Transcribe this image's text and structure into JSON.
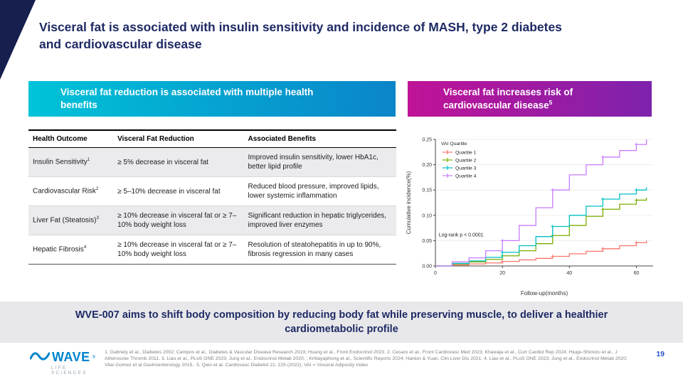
{
  "title": "Visceral fat is associated with insulin sensitivity and incidence of MASH, type 2 diabetes and cardiovascular disease",
  "banners": {
    "left": {
      "text": "Visceral fat reduction is associated with multiple health benefits"
    },
    "right": {
      "text": "Visceral fat increases risk of cardiovascular disease",
      "sup": "5"
    }
  },
  "table": {
    "headers": [
      "Health Outcome",
      "Visceral Fat Reduction",
      "Associated Benefits"
    ],
    "rows": [
      {
        "outcome": "Insulin Sensitivity",
        "sup": "1",
        "reduction": "≥ 5% decrease in visceral fat",
        "benefits": "Improved insulin sensitivity, lower HbA1c, better lipid profile"
      },
      {
        "outcome": "Cardiovascular Risk",
        "sup": "2",
        "reduction": "≥ 5–10% decrease in visceral fat",
        "benefits": "Reduced blood pressure, improved lipids, lower systemic inflammation"
      },
      {
        "outcome": "Liver Fat (Steatosis)",
        "sup": "3",
        "reduction": "≥ 10% decrease in visceral fat or ≥ 7–10% body weight loss",
        "benefits": "Significant reduction in hepatic triglycerides, improved liver enzymes"
      },
      {
        "outcome": "Hepatic Fibrosis",
        "sup": "4",
        "reduction": "≥ 10% decrease in visceral fat or ≥ 7–10% body weight loss",
        "benefits": "Resolution of steatohepatitis in up to 90%, fibrosis regression in many cases"
      }
    ]
  },
  "chart_data": {
    "type": "line",
    "subtype": "kaplan-meier-step",
    "title": "",
    "xlabel": "Follow-up(months)",
    "ylabel": "Cumulative incidence(%)",
    "xlim": [
      0,
      65
    ],
    "ylim": [
      0,
      0.25
    ],
    "xticks": [
      0,
      20,
      40,
      60
    ],
    "yticks": [
      0,
      0.05,
      0.1,
      0.15,
      0.2,
      0.25
    ],
    "legend_title": "VAI Quartile",
    "legend_position": "top-left-inside",
    "grid": "light-horizontal",
    "annotation": {
      "text": "Log-rank p < 0.0001",
      "x": 1,
      "y": 0.058
    },
    "series": [
      {
        "name": "Quartile 1",
        "color": "#F8766D",
        "x": [
          0,
          5,
          10,
          15,
          20,
          25,
          30,
          35,
          40,
          45,
          50,
          55,
          60,
          63
        ],
        "y": [
          0,
          0.002,
          0.004,
          0.006,
          0.009,
          0.012,
          0.015,
          0.019,
          0.024,
          0.029,
          0.034,
          0.04,
          0.046,
          0.05
        ]
      },
      {
        "name": "Quartile 2",
        "color": "#7CAE00",
        "x": [
          0,
          5,
          10,
          15,
          20,
          25,
          30,
          35,
          40,
          45,
          50,
          55,
          60,
          63
        ],
        "y": [
          0,
          0.004,
          0.008,
          0.013,
          0.02,
          0.03,
          0.044,
          0.06,
          0.08,
          0.098,
          0.112,
          0.122,
          0.13,
          0.135
        ]
      },
      {
        "name": "Quartile 3",
        "color": "#00BFC4",
        "x": [
          0,
          5,
          10,
          15,
          20,
          25,
          30,
          35,
          40,
          45,
          50,
          55,
          60,
          63
        ],
        "y": [
          0,
          0.005,
          0.01,
          0.017,
          0.027,
          0.04,
          0.058,
          0.078,
          0.1,
          0.118,
          0.132,
          0.142,
          0.15,
          0.155
        ]
      },
      {
        "name": "Quartile 4",
        "color": "#C77CFF",
        "x": [
          0,
          5,
          10,
          15,
          20,
          25,
          30,
          35,
          40,
          45,
          50,
          55,
          60,
          63
        ],
        "y": [
          0,
          0.008,
          0.016,
          0.03,
          0.05,
          0.08,
          0.115,
          0.15,
          0.18,
          0.2,
          0.215,
          0.228,
          0.24,
          0.25
        ]
      }
    ]
  },
  "bottom_banner": "WVE-007 aims to shift body composition by reducing body fat while preserving muscle, to deliver a healthier cardiometabolic profile",
  "footer": {
    "logo_name": "WAVE",
    "logo_reg": "®",
    "logo_tagline": "LIFE SCIENCES",
    "references": "1. Gabriely et al., Diabetes 2002; Campos et al., Diabetes & Vascular Disease Research 2019; Huang et al., Front Endocrinol 2023. 2. Cesaro et al., Front Cardiovasc Med 2023; Khawaja et al., Curr Cardiol Rep 2024; Hiuge-Shimizu et al., J Atheroscler Thromb 2011. 3. Liao et al., PLoS ONE 2023; Jung et al., Endocrinol Metab 2020; ; Krittayaphong et al., Scientific Reports 2024; Hanlon & Yuan, Clin Liver Dis 2021. 4. Liao et al., PLoS ONE 2023; Jung et al., Endocrinol Metab 2020; Vilar-Gomez et al Gastroenterology 2015.. 5. Qaio et al.  Cardiovasc Diabetol 21, 225 (2022). VAI = Visceral Adiposity Index",
    "page_number": "19"
  },
  "colors": {
    "title_navy": "#1e2a64",
    "corner_navy": "#161f4e",
    "banner_teal_start": "#00c3d8",
    "banner_teal_end": "#0a85c9",
    "banner_magenta_start": "#c01397",
    "banner_magenta_end": "#7e22ad",
    "bottom_banner_bg": "#e8e8eb",
    "logo_blue": "#0084cc",
    "page_number_blue": "#2150c8"
  }
}
